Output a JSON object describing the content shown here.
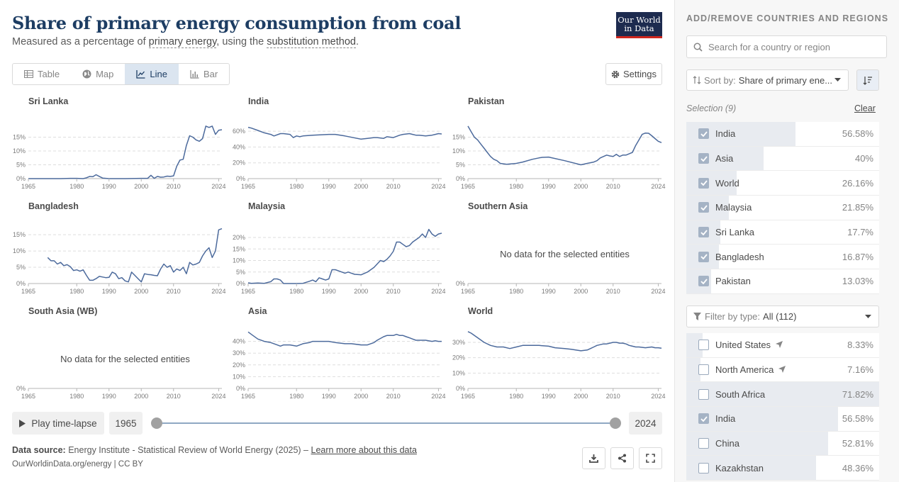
{
  "header": {
    "title": "Share of primary energy consumption from coal",
    "subtitle_pre": "Measured as a percentage of ",
    "subtitle_link1": "primary energy",
    "subtitle_mid": ", using the ",
    "subtitle_link2": "substitution method",
    "subtitle_post": ".",
    "logo_line1": "Our World",
    "logo_line2": "in Data"
  },
  "tabs": [
    {
      "label": "Table",
      "icon": "table-icon",
      "active": false
    },
    {
      "label": "Map",
      "icon": "globe-icon",
      "active": false
    },
    {
      "label": "Line",
      "icon": "line-chart-icon",
      "active": true
    },
    {
      "label": "Bar",
      "icon": "bar-chart-icon",
      "active": false
    }
  ],
  "settings_label": "Settings",
  "chart_data": [
    {
      "type": "line",
      "title": "Sri Lanka",
      "x": [
        1965,
        1970,
        1975,
        1978,
        1980,
        1982,
        1983,
        1984,
        1985,
        1986,
        1987,
        1988,
        1990,
        1995,
        2000,
        2001,
        2002,
        2003,
        2004,
        2005,
        2006,
        2007,
        2008,
        2009,
        2010,
        2011,
        2012,
        2013,
        2014,
        2015,
        2016,
        2017,
        2018,
        2019,
        2020,
        2021,
        2022,
        2023,
        2024,
        2025
      ],
      "values": [
        0,
        0,
        0,
        0.1,
        0.1,
        0,
        0.3,
        0.8,
        0.7,
        1.4,
        0.8,
        0.2,
        0,
        0,
        0.1,
        0.1,
        0.1,
        1.2,
        0.1,
        0.8,
        0.5,
        0.6,
        0.9,
        0.8,
        1.0,
        4.5,
        6.7,
        7.0,
        12.0,
        15.5,
        15.0,
        14.0,
        13.5,
        14.5,
        19.0,
        18.5,
        19.0,
        16.0,
        17.5,
        17.7
      ],
      "yticks": [
        "0%",
        "5%",
        "10%",
        "15%"
      ],
      "ymax": 20,
      "xticks": [
        "1965",
        "1980",
        "1990",
        "2000",
        "2010",
        "2024"
      ]
    },
    {
      "type": "line",
      "title": "India",
      "x": [
        1965,
        1966,
        1968,
        1970,
        1972,
        1973,
        1975,
        1976,
        1978,
        1979,
        1980,
        1981,
        1982,
        1985,
        1990,
        1992,
        1995,
        2000,
        2002,
        2004,
        2005,
        2007,
        2008,
        2010,
        2012,
        2013,
        2015,
        2016,
        2017,
        2018,
        2020,
        2022,
        2023,
        2024,
        2025
      ],
      "values": [
        65,
        64,
        61,
        58,
        56,
        54,
        57,
        57,
        56,
        52,
        54,
        53,
        54,
        55,
        56,
        56,
        54,
        50,
        51,
        52,
        52,
        51,
        53,
        52,
        55,
        56,
        57,
        56,
        55,
        55,
        54,
        55,
        56,
        57,
        56.58
      ],
      "yticks": [
        "0%",
        "20%",
        "40%",
        "60%"
      ],
      "ymax": 70,
      "xticks": [
        "1965",
        "1980",
        "1990",
        "2000",
        "2010",
        "2024"
      ]
    },
    {
      "type": "line",
      "title": "Pakistan",
      "x": [
        1965,
        1966,
        1967,
        1968,
        1969,
        1970,
        1971,
        1972,
        1973,
        1974,
        1975,
        1977,
        1980,
        1982,
        1985,
        1987,
        1988,
        1990,
        1995,
        2000,
        2002,
        2004,
        2005,
        2006,
        2007,
        2008,
        2009,
        2010,
        2011,
        2012,
        2013,
        2014,
        2015,
        2016,
        2017,
        2018,
        2019,
        2020,
        2021,
        2022,
        2023,
        2024,
        2025
      ],
      "values": [
        19,
        17,
        15,
        14,
        12.5,
        11,
        9.5,
        8,
        7,
        6.5,
        5.5,
        5.2,
        5.5,
        6,
        7,
        7.5,
        7.7,
        7.8,
        6.5,
        5,
        5.5,
        6,
        6.5,
        7.5,
        8,
        8.5,
        8.2,
        8,
        8.8,
        8,
        8.5,
        8.5,
        9,
        9.5,
        12,
        14,
        16,
        16.5,
        16.4,
        15.5,
        14.5,
        13.5,
        13.03
      ],
      "yticks": [
        "0%",
        "5%",
        "10%",
        "15%"
      ],
      "ymax": 20,
      "xticks": [
        "1965",
        "1980",
        "1990",
        "2000",
        "2010",
        "2024"
      ]
    },
    {
      "type": "line",
      "title": "Bangladesh",
      "x": [
        1971,
        1972,
        1973,
        1974,
        1975,
        1976,
        1977,
        1978,
        1979,
        1980,
        1981,
        1982,
        1983,
        1984,
        1985,
        1986,
        1987,
        1988,
        1989,
        1990,
        1991,
        1992,
        1993,
        1994,
        1995,
        1996,
        1997,
        1998,
        1999,
        2000,
        2001,
        2002,
        2003,
        2004,
        2005,
        2006,
        2007,
        2008,
        2009,
        2010,
        2011,
        2012,
        2013,
        2014,
        2015,
        2016,
        2017,
        2018,
        2019,
        2020,
        2021,
        2022,
        2023,
        2024,
        2025
      ],
      "values": [
        8,
        7,
        7,
        6,
        6.5,
        5.5,
        5.8,
        5.2,
        4,
        4.2,
        3.8,
        4.2,
        2.5,
        1,
        1,
        1.5,
        2.2,
        2,
        1.8,
        1.9,
        3.5,
        3,
        1.5,
        1.8,
        0.8,
        0.5,
        3.5,
        2.5,
        1.5,
        0.5,
        3,
        2.8,
        2.7,
        2.5,
        2.4,
        4.5,
        6,
        5,
        5.5,
        3.5,
        4.5,
        4,
        5,
        3,
        6.5,
        5.7,
        6,
        6.5,
        8.5,
        10,
        11,
        8,
        10,
        16.5,
        16.87
      ],
      "yticks": [
        "0%",
        "5%",
        "10%",
        "15%"
      ],
      "ymax": 17,
      "xticks": [
        "1965",
        "1980",
        "1990",
        "2000",
        "2010",
        "2024"
      ]
    },
    {
      "type": "line",
      "title": "Malaysia",
      "x": [
        1965,
        1966,
        1968,
        1970,
        1972,
        1973,
        1974,
        1975,
        1976,
        1977,
        1978,
        1980,
        1982,
        1984,
        1985,
        1986,
        1987,
        1988,
        1989,
        1990,
        1991,
        1992,
        1993,
        1995,
        1996,
        1997,
        1998,
        2000,
        2002,
        2004,
        2006,
        2007,
        2008,
        2009,
        2010,
        2011,
        2012,
        2013,
        2014,
        2015,
        2016,
        2018,
        2019,
        2020,
        2021,
        2022,
        2023,
        2024,
        2025
      ],
      "values": [
        0.3,
        0.1,
        0.2,
        0.1,
        0.8,
        2,
        2,
        1.5,
        0,
        0,
        0,
        0,
        0.1,
        1,
        1.5,
        0.8,
        2.5,
        2,
        1.5,
        2,
        6,
        6,
        5.5,
        4.5,
        5,
        4.5,
        4,
        3.8,
        5,
        7,
        10,
        9.5,
        10.5,
        12,
        14,
        18,
        18,
        17,
        16,
        16.5,
        18,
        20,
        21.5,
        20,
        23.5,
        21.5,
        20.5,
        21.5,
        21.85
      ],
      "yticks": [
        "0%",
        "5%",
        "10%",
        "15%",
        "20%"
      ],
      "ymax": 24,
      "xticks": [
        "1965",
        "1980",
        "1990",
        "2000",
        "2010",
        "2024"
      ]
    },
    {
      "type": "line",
      "title": "Southern Asia",
      "no_data": "No data for the selected entities",
      "values": [],
      "yticks": [
        "0%"
      ],
      "xticks": [
        "1965",
        "1980",
        "1990",
        "2000",
        "2010",
        "2024"
      ]
    },
    {
      "type": "line",
      "title": "South Asia (WB)",
      "no_data": "No data for the selected entities",
      "values": [],
      "yticks": [
        "0%"
      ],
      "xticks": [
        "1965",
        "1980",
        "1990",
        "2000",
        "2010",
        "2024"
      ]
    },
    {
      "type": "line",
      "title": "Asia",
      "x": [
        1965,
        1966,
        1968,
        1970,
        1972,
        1974,
        1975,
        1976,
        1978,
        1980,
        1982,
        1984,
        1985,
        1987,
        1990,
        1992,
        1995,
        1997,
        2000,
        2002,
        2003,
        2004,
        2005,
        2007,
        2008,
        2009,
        2010,
        2011,
        2012,
        2013,
        2014,
        2015,
        2016,
        2017,
        2018,
        2020,
        2022,
        2023,
        2024,
        2025
      ],
      "values": [
        48,
        46,
        42,
        40,
        39,
        37,
        36,
        37,
        37,
        36,
        38,
        39,
        40,
        40,
        40,
        39,
        38,
        38,
        37,
        37,
        38,
        39,
        41,
        44,
        45,
        45,
        45,
        46,
        45,
        45,
        44,
        43,
        42,
        41,
        41,
        41,
        40,
        40.5,
        40,
        40
      ],
      "yticks": [
        "0%",
        "10%",
        "20%",
        "30%",
        "40%"
      ],
      "ymax": 47,
      "xticks": [
        "1965",
        "1980",
        "1990",
        "2000",
        "2010",
        "2024"
      ]
    },
    {
      "type": "line",
      "title": "World",
      "x": [
        1965,
        1966,
        1968,
        1970,
        1972,
        1974,
        1975,
        1976,
        1978,
        1980,
        1982,
        1984,
        1985,
        1987,
        1990,
        1992,
        1995,
        1997,
        2000,
        2002,
        2003,
        2004,
        2005,
        2007,
        2008,
        2009,
        2010,
        2011,
        2012,
        2013,
        2014,
        2015,
        2016,
        2017,
        2018,
        2020,
        2022,
        2023,
        2024,
        2025
      ],
      "values": [
        37,
        36,
        33,
        30,
        28,
        27,
        27,
        27,
        26,
        27,
        28,
        28,
        28,
        28,
        27.5,
        26.5,
        26,
        25.5,
        24.5,
        25,
        26,
        27,
        28,
        29,
        29,
        29.5,
        30,
        30,
        29.5,
        29.5,
        29,
        28,
        27.5,
        27,
        27,
        26.5,
        27,
        26.5,
        26.5,
        26.16
      ],
      "yticks": [
        "0%",
        "10%",
        "20%",
        "30%"
      ],
      "ymax": 36,
      "xticks": [
        "1965",
        "1980",
        "1990",
        "2000",
        "2010",
        "2024"
      ]
    }
  ],
  "timeline": {
    "play_label": "Play time-lapse",
    "start_year": "1965",
    "end_year": "2024",
    "start_frac": 0,
    "end_frac": 1
  },
  "footer": {
    "source_label": "Data source:",
    "source_text": " Energy Institute - Statistical Review of World Energy (2025) – ",
    "learn_more": "Learn more about this data",
    "credit": "OurWorldinData.org/energy | CC BY"
  },
  "sidebar": {
    "heading": "ADD/REMOVE COUNTRIES AND REGIONS",
    "search_placeholder": "Search for a country or region",
    "sort_label": "Sort by:",
    "sort_value": "Share of primary ene...",
    "selection_label": "Selection (9)",
    "clear_label": "Clear",
    "selected": [
      {
        "name": "India",
        "value": "56.58%",
        "frac": 0.566,
        "checked": true,
        "loc": false
      },
      {
        "name": "Asia",
        "value": "40%",
        "frac": 0.4,
        "checked": true,
        "loc": false
      },
      {
        "name": "World",
        "value": "26.16%",
        "frac": 0.262,
        "checked": true,
        "loc": false
      },
      {
        "name": "Malaysia",
        "value": "21.85%",
        "frac": 0.219,
        "checked": true,
        "loc": false
      },
      {
        "name": "Sri Lanka",
        "value": "17.7%",
        "frac": 0.177,
        "checked": true,
        "loc": false
      },
      {
        "name": "Bangladesh",
        "value": "16.87%",
        "frac": 0.169,
        "checked": true,
        "loc": false
      },
      {
        "name": "Pakistan",
        "value": "13.03%",
        "frac": 0.13,
        "checked": true,
        "loc": false
      }
    ],
    "filter_label": "Filter by type:",
    "filter_value": "All (112)",
    "all": [
      {
        "name": "United States",
        "value": "8.33%",
        "frac": 0.083,
        "checked": false,
        "loc": true
      },
      {
        "name": "North America",
        "value": "7.16%",
        "frac": 0.072,
        "checked": false,
        "loc": true
      },
      {
        "name": "South Africa",
        "value": "71.82%",
        "frac": 1.0,
        "checked": false,
        "loc": false
      },
      {
        "name": "India",
        "value": "56.58%",
        "frac": 0.788,
        "checked": true,
        "loc": false
      },
      {
        "name": "China",
        "value": "52.81%",
        "frac": 0.735,
        "checked": false,
        "loc": false
      },
      {
        "name": "Kazakhstan",
        "value": "48.36%",
        "frac": 0.673,
        "checked": false,
        "loc": false
      }
    ]
  }
}
